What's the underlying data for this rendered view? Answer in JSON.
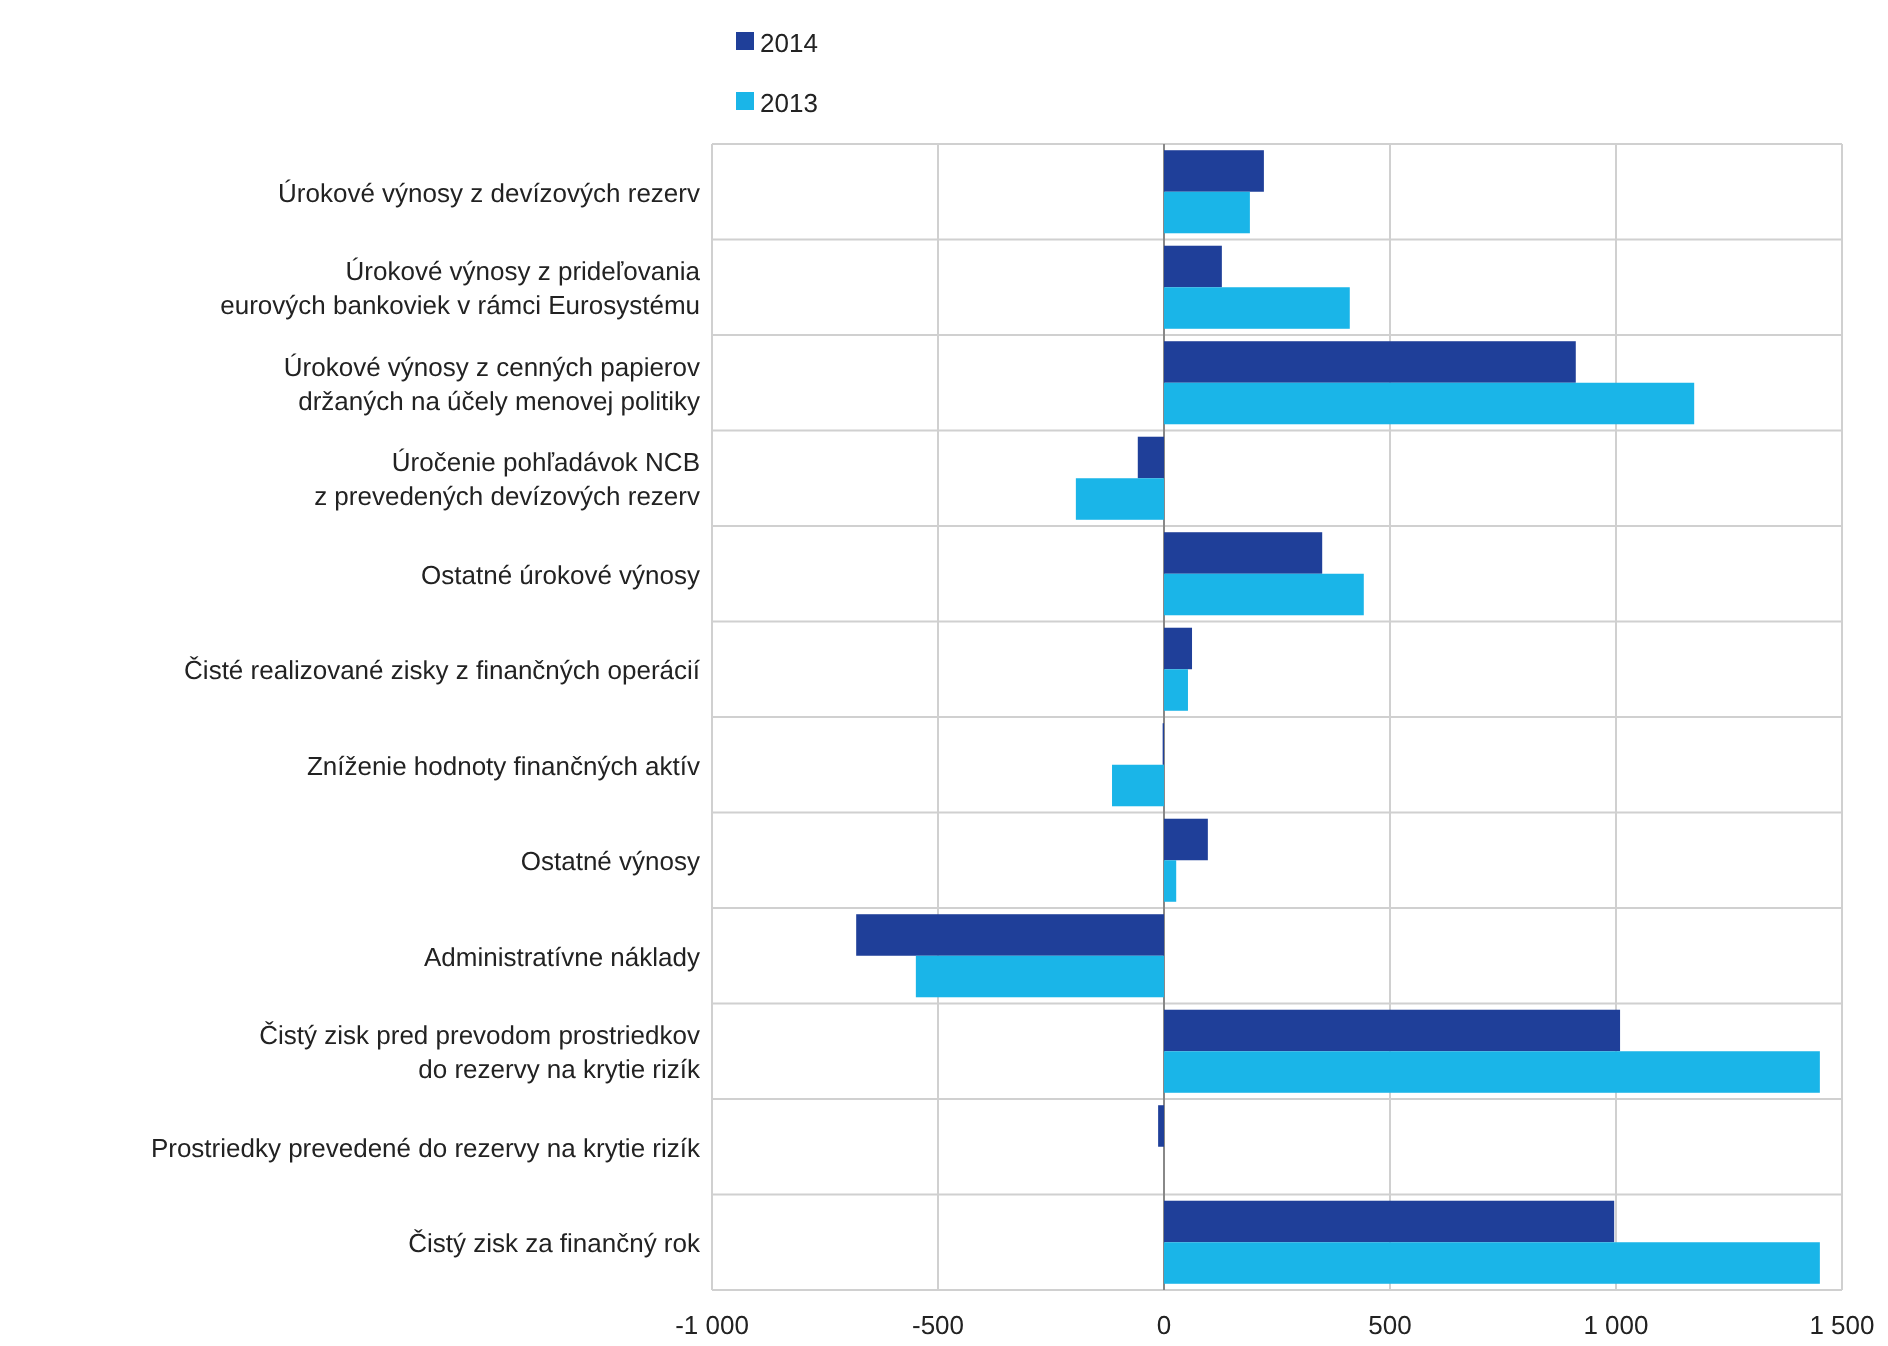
{
  "chart_data": {
    "type": "bar",
    "orientation": "horizontal",
    "categories": [
      "Úrokové výnosy z devízových rezerv",
      "Úrokové výnosy z prideľovania\neurových bankoviek v rámci Eurosystému",
      "Úrokové výnosy z cenných papierov\ndržaných na účely menovej politiky",
      "Úročenie pohľadávok NCB\nz prevedených devízových rezerv",
      "Ostatné úrokové výnosy",
      "Čisté realizované zisky z finančných operácií",
      "Zníženie hodnoty finančných aktív",
      "Ostatné výnosy",
      "Administratívne náklady",
      "Čistý zisk pred prevodom prostriedkov\ndo rezervy na krytie rizík",
      "Prostriedky prevedené do rezervy na krytie rizík",
      "Čistý zisk za finančný rok"
    ],
    "series": [
      {
        "name": "2014",
        "color": "#1f3f99",
        "values": [
          221,
          128,
          911,
          -58,
          350,
          62,
          -3,
          97,
          -681,
          1009,
          -13,
          996
        ]
      },
      {
        "name": "2013",
        "color": "#1ab5e8",
        "values": [
          190,
          411,
          1173,
          -195,
          442,
          53,
          -115,
          27,
          -549,
          1451,
          null,
          1451
        ]
      }
    ],
    "xlim": [
      -1000,
      1500
    ],
    "xticks": [
      {
        "value": -1000,
        "label": "-1 000"
      },
      -500,
      0,
      500,
      {
        "value": 1000,
        "label": "1 000"
      },
      {
        "value": 1500,
        "label": "1 500"
      }
    ],
    "grid": true,
    "legend": "top left"
  }
}
